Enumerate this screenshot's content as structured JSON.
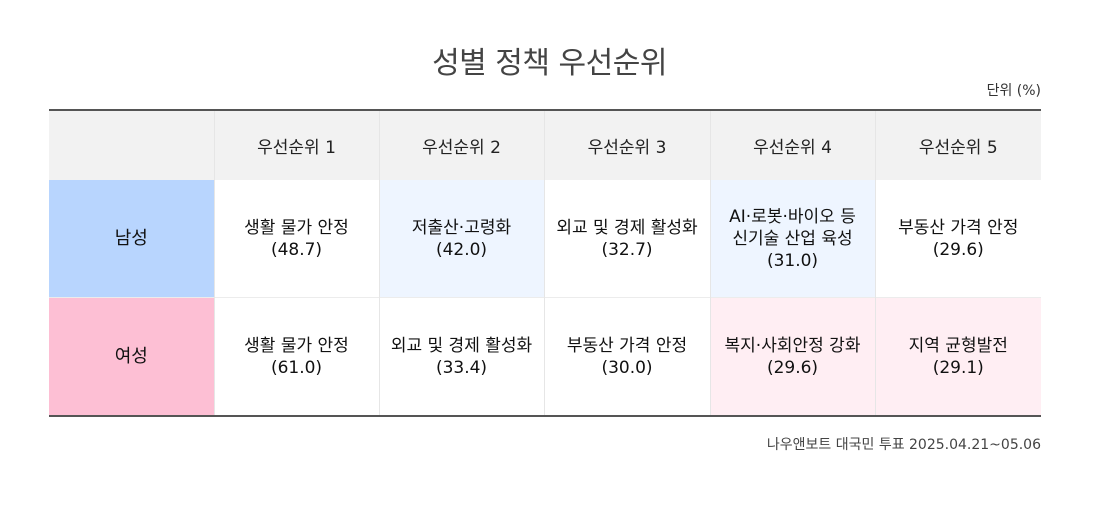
{
  "chart_data": {
    "type": "table",
    "title": "성별 정책 우선순위",
    "unit_label": "단위 (%)",
    "columns": [
      "우선순위 1",
      "우선순위 2",
      "우선순위 3",
      "우선순위 4",
      "우선순위 5"
    ],
    "rows": [
      {
        "name": "남성",
        "color": "#b8d5fe",
        "highlight_color": "#eef5ff",
        "cells": [
          {
            "label": "생활 물가 안정",
            "value": "(48.7)",
            "highlight": false
          },
          {
            "label": "저출산·고령화",
            "value": "(42.0)",
            "highlight": true
          },
          {
            "label": "외교 및 경제 활성화",
            "value": "(32.7)",
            "highlight": false
          },
          {
            "label": "AI·로봇·바이오 등\n신기술 산업 육성",
            "value": "(31.0)",
            "highlight": true
          },
          {
            "label": "부동산 가격 안정",
            "value": "(29.6)",
            "highlight": false
          }
        ]
      },
      {
        "name": "여성",
        "color": "#fdbfd4",
        "highlight_color": "#ffeef3",
        "cells": [
          {
            "label": "생활 물가 안정",
            "value": "(61.0)",
            "highlight": false
          },
          {
            "label": "외교 및 경제 활성화",
            "value": "(33.4)",
            "highlight": false
          },
          {
            "label": "부동산 가격 안정",
            "value": "(30.0)",
            "highlight": false
          },
          {
            "label": "복지·사회안정 강화",
            "value": "(29.6)",
            "highlight": true
          },
          {
            "label": "지역 균형발전",
            "value": "(29.1)",
            "highlight": true
          }
        ]
      }
    ],
    "source": "나우앤보트 대국민 투표 2025.04.21~05.06"
  }
}
